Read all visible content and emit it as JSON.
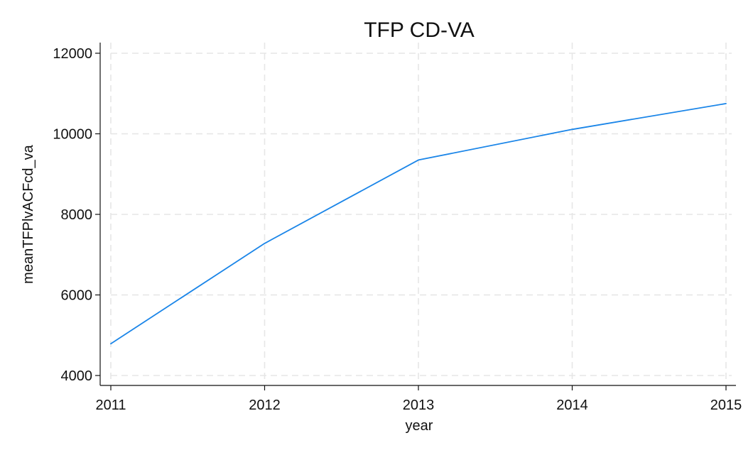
{
  "chart_data": {
    "type": "line",
    "title": "TFP CD-VA",
    "xlabel": "year",
    "ylabel": "meanTFPlvACFcd_va",
    "x": [
      2011,
      2012,
      2013,
      2014,
      2015
    ],
    "series": [
      {
        "values": [
          4790,
          7280,
          9350,
          10110,
          10750
        ],
        "color": "#1a85e8"
      }
    ],
    "xticks": [
      "2011",
      "2012",
      "2013",
      "2014",
      "2015"
    ],
    "yticks": [
      "4000",
      "6000",
      "8000",
      "10000",
      "12000"
    ],
    "xlim": [
      2011,
      2015
    ],
    "ylim": [
      4000,
      12000
    ],
    "grid": true,
    "legend": "none"
  }
}
